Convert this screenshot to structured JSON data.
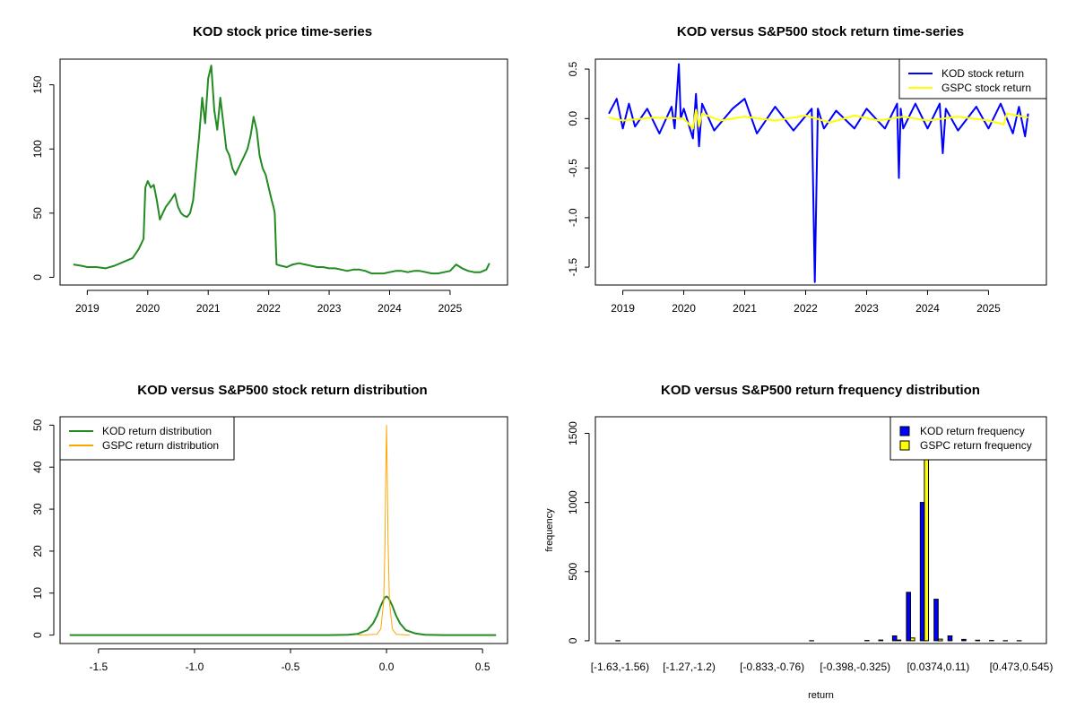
{
  "chart_data": [
    {
      "type": "line",
      "title": "KOD stock price time-series",
      "xlabel": "",
      "ylabel": "",
      "x_ticks": [
        "2019",
        "2020",
        "2021",
        "2022",
        "2023",
        "2024",
        "2025"
      ],
      "y_ticks": [
        "0",
        "50",
        "100",
        "150"
      ],
      "xlim": [
        2018.55,
        2025.95
      ],
      "ylim": [
        -6,
        170
      ],
      "grid": false,
      "legend": "none",
      "color": "#228B22",
      "series": [
        {
          "x": [
            2018.77,
            2018.9,
            2019.0,
            2019.15,
            2019.3,
            2019.45,
            2019.6,
            2019.75,
            2019.85,
            2019.93,
            2019.96,
            2020.0,
            2020.05,
            2020.1,
            2020.15,
            2020.2,
            2020.25,
            2020.3,
            2020.38,
            2020.45,
            2020.5,
            2020.55,
            2020.6,
            2020.65,
            2020.7,
            2020.75,
            2020.8,
            2020.85,
            2020.9,
            2020.95,
            2021.0,
            2021.05,
            2021.1,
            2021.15,
            2021.2,
            2021.25,
            2021.3,
            2021.35,
            2021.4,
            2021.45,
            2021.5,
            2021.55,
            2021.6,
            2021.65,
            2021.7,
            2021.75,
            2021.8,
            2021.85,
            2021.9,
            2021.95,
            2022.0,
            2022.05,
            2022.08,
            2022.1,
            2022.13,
            2022.2,
            2022.3,
            2022.4,
            2022.5,
            2022.6,
            2022.7,
            2022.8,
            2022.9,
            2023.0,
            2023.1,
            2023.2,
            2023.3,
            2023.4,
            2023.5,
            2023.6,
            2023.7,
            2023.8,
            2023.9,
            2024.0,
            2024.1,
            2024.2,
            2024.3,
            2024.4,
            2024.5,
            2024.6,
            2024.7,
            2024.8,
            2024.9,
            2025.0,
            2025.1,
            2025.2,
            2025.3,
            2025.4,
            2025.5,
            2025.6,
            2025.65
          ],
          "y": [
            10,
            9,
            8,
            8,
            7,
            9,
            12,
            15,
            22,
            30,
            70,
            75,
            70,
            72,
            60,
            45,
            50,
            55,
            60,
            65,
            55,
            50,
            48,
            47,
            50,
            60,
            85,
            110,
            140,
            120,
            155,
            165,
            130,
            115,
            140,
            120,
            100,
            95,
            85,
            80,
            85,
            90,
            95,
            100,
            110,
            125,
            115,
            95,
            85,
            80,
            70,
            60,
            55,
            50,
            10,
            9,
            8,
            10,
            11,
            10,
            9,
            8,
            8,
            7,
            7,
            6,
            5,
            6,
            6,
            5,
            3,
            3,
            3,
            4,
            5,
            5,
            4,
            5,
            5,
            4,
            3,
            3,
            4,
            5,
            10,
            7,
            5,
            4,
            4,
            6,
            11
          ]
        }
      ]
    },
    {
      "type": "line",
      "title": "KOD versus S&P500 stock return time-series",
      "xlabel": "",
      "ylabel": "",
      "x_ticks": [
        "2019",
        "2020",
        "2021",
        "2022",
        "2023",
        "2024",
        "2025"
      ],
      "y_ticks": [
        "0.5",
        "0.0",
        "-0.5",
        "-1.0",
        "-1.5"
      ],
      "xlim": [
        2018.55,
        2025.95
      ],
      "ylim": [
        -1.68,
        0.6
      ],
      "grid": false,
      "legend": "top-right",
      "series": [
        {
          "name": "KOD stock return",
          "color": "#0000ff",
          "x": [
            2018.77,
            2018.9,
            2019.0,
            2019.1,
            2019.2,
            2019.4,
            2019.6,
            2019.8,
            2019.85,
            2019.92,
            2019.95,
            2020.0,
            2020.15,
            2020.2,
            2020.25,
            2020.3,
            2020.5,
            2020.8,
            2021.0,
            2021.2,
            2021.5,
            2021.8,
            2022.1,
            2022.15,
            2022.2,
            2022.3,
            2022.5,
            2022.8,
            2023.0,
            2023.3,
            2023.5,
            2023.53,
            2023.56,
            2023.6,
            2023.8,
            2024.0,
            2024.2,
            2024.25,
            2024.3,
            2024.5,
            2024.8,
            2025.0,
            2025.2,
            2025.4,
            2025.5,
            2025.6,
            2025.65
          ],
          "y": [
            0.05,
            0.2,
            -0.1,
            0.15,
            -0.08,
            0.1,
            -0.15,
            0.12,
            -0.1,
            0.55,
            0.0,
            0.1,
            -0.2,
            0.25,
            -0.28,
            0.15,
            -0.12,
            0.1,
            0.2,
            -0.15,
            0.12,
            -0.12,
            0.1,
            -1.65,
            0.1,
            -0.1,
            0.08,
            -0.1,
            0.1,
            -0.1,
            0.15,
            -0.6,
            0.1,
            -0.1,
            0.15,
            -0.1,
            0.15,
            -0.35,
            0.1,
            -0.12,
            0.12,
            -0.1,
            0.15,
            -0.15,
            0.12,
            -0.18,
            0.05
          ]
        },
        {
          "name": "GSPC stock return",
          "color": "#ffff00",
          "x": [
            2018.77,
            2019.0,
            2019.5,
            2020.0,
            2020.15,
            2020.2,
            2020.25,
            2020.3,
            2020.6,
            2021.0,
            2021.5,
            2022.0,
            2022.4,
            2022.8,
            2023.2,
            2023.6,
            2024.0,
            2024.5,
            2025.0,
            2025.25,
            2025.3,
            2025.65
          ],
          "y": [
            0.01,
            -0.02,
            0.01,
            0.0,
            -0.1,
            0.09,
            -0.08,
            0.05,
            -0.02,
            0.02,
            -0.02,
            0.03,
            -0.04,
            0.03,
            -0.02,
            0.02,
            -0.02,
            0.02,
            -0.02,
            -0.06,
            0.05,
            0.01
          ]
        }
      ]
    },
    {
      "type": "line",
      "title": "KOD versus S&P500 stock return distribution",
      "xlabel": "",
      "ylabel": "",
      "x_ticks": [
        "-1.5",
        "-1.0",
        "-0.5",
        "0.0",
        "0.5"
      ],
      "y_ticks": [
        "0",
        "10",
        "20",
        "30",
        "40",
        "50"
      ],
      "xlim": [
        -1.7,
        0.63
      ],
      "ylim": [
        -2,
        52
      ],
      "grid": false,
      "legend": "top-left",
      "series": [
        {
          "name": "KOD return distribution",
          "color": "#228B22",
          "x": [
            -1.65,
            -0.3,
            -0.2,
            -0.15,
            -0.1,
            -0.07,
            -0.05,
            -0.03,
            -0.01,
            0.0,
            0.01,
            0.03,
            0.05,
            0.07,
            0.1,
            0.15,
            0.2,
            0.3,
            0.57
          ],
          "y": [
            0,
            0,
            0.1,
            0.3,
            1.2,
            2.8,
            4.6,
            7.0,
            8.9,
            9.2,
            8.9,
            7.0,
            4.6,
            2.8,
            1.2,
            0.4,
            0.1,
            0,
            0
          ]
        },
        {
          "name": "GSPC return distribution",
          "color": "#ffa500",
          "x": [
            -0.15,
            -0.05,
            -0.03,
            -0.015,
            -0.008,
            -0.004,
            0.0,
            0.004,
            0.008,
            0.015,
            0.03,
            0.05,
            0.12
          ],
          "y": [
            0,
            0.2,
            1.5,
            8,
            22,
            38,
            50,
            38,
            22,
            8,
            1.5,
            0.2,
            0
          ]
        }
      ]
    },
    {
      "type": "bar",
      "title": "KOD versus S&P500 return frequency distribution",
      "xlabel": "return",
      "ylabel": "frequency",
      "x_ticks": [
        "[-1.63,-1.56)",
        "[-1.27,-1.2)",
        "[-0.833,-0.76)",
        "[-0.398,-0.325)",
        "[0.0374,0.11)",
        "[0.473,0.545)"
      ],
      "x_tick_bins": [
        0,
        5,
        11,
        17,
        23,
        29
      ],
      "y_ticks": [
        "0",
        "500",
        "1000",
        "1500"
      ],
      "ylim": [
        -20,
        1620
      ],
      "grid": false,
      "legend": "top-right",
      "categories": [
        "[-1.63,-1.56)",
        "[-1.56,-1.49)",
        "[-1.49,-1.42)",
        "[-1.42,-1.34)",
        "[-1.34,-1.27)",
        "[-1.27,-1.2)",
        "[-1.2,-1.13)",
        "[-1.13,-1.05)",
        "[-1.05,-0.977)",
        "[-0.977,-0.905)",
        "[-0.905,-0.833)",
        "[-0.833,-0.76)",
        "[-0.76,-0.688)",
        "[-0.688,-0.615)",
        "[-0.615,-0.543)",
        "[-0.543,-0.47)",
        "[-0.47,-0.398)",
        "[-0.398,-0.325)",
        "[-0.325,-0.253)",
        "[-0.253,-0.18)",
        "[-0.18,-0.108)",
        "[-0.108,-0.0351)",
        "[-0.0351,0.0374)",
        "[0.0374,0.11)",
        "[0.11,0.182)",
        "[0.182,0.255)",
        "[0.255,0.328)",
        "[0.328,0.4)",
        "[0.4,0.473)",
        "[0.473,0.545)"
      ],
      "series": [
        {
          "name": "KOD return frequency",
          "color": "#0000ff",
          "values": [
            1,
            0,
            0,
            0,
            0,
            0,
            0,
            0,
            0,
            0,
            0,
            0,
            0,
            0,
            1,
            0,
            0,
            0,
            2,
            5,
            35,
            350,
            1000,
            300,
            35,
            10,
            4,
            2,
            1,
            1
          ]
        },
        {
          "name": "GSPC return frequency",
          "color": "#ffff00",
          "values": [
            0,
            0,
            0,
            0,
            0,
            0,
            0,
            0,
            0,
            0,
            0,
            0,
            0,
            0,
            0,
            0,
            0,
            0,
            0,
            0,
            5,
            20,
            1620,
            12,
            0,
            0,
            0,
            0,
            0,
            0
          ]
        }
      ]
    }
  ]
}
